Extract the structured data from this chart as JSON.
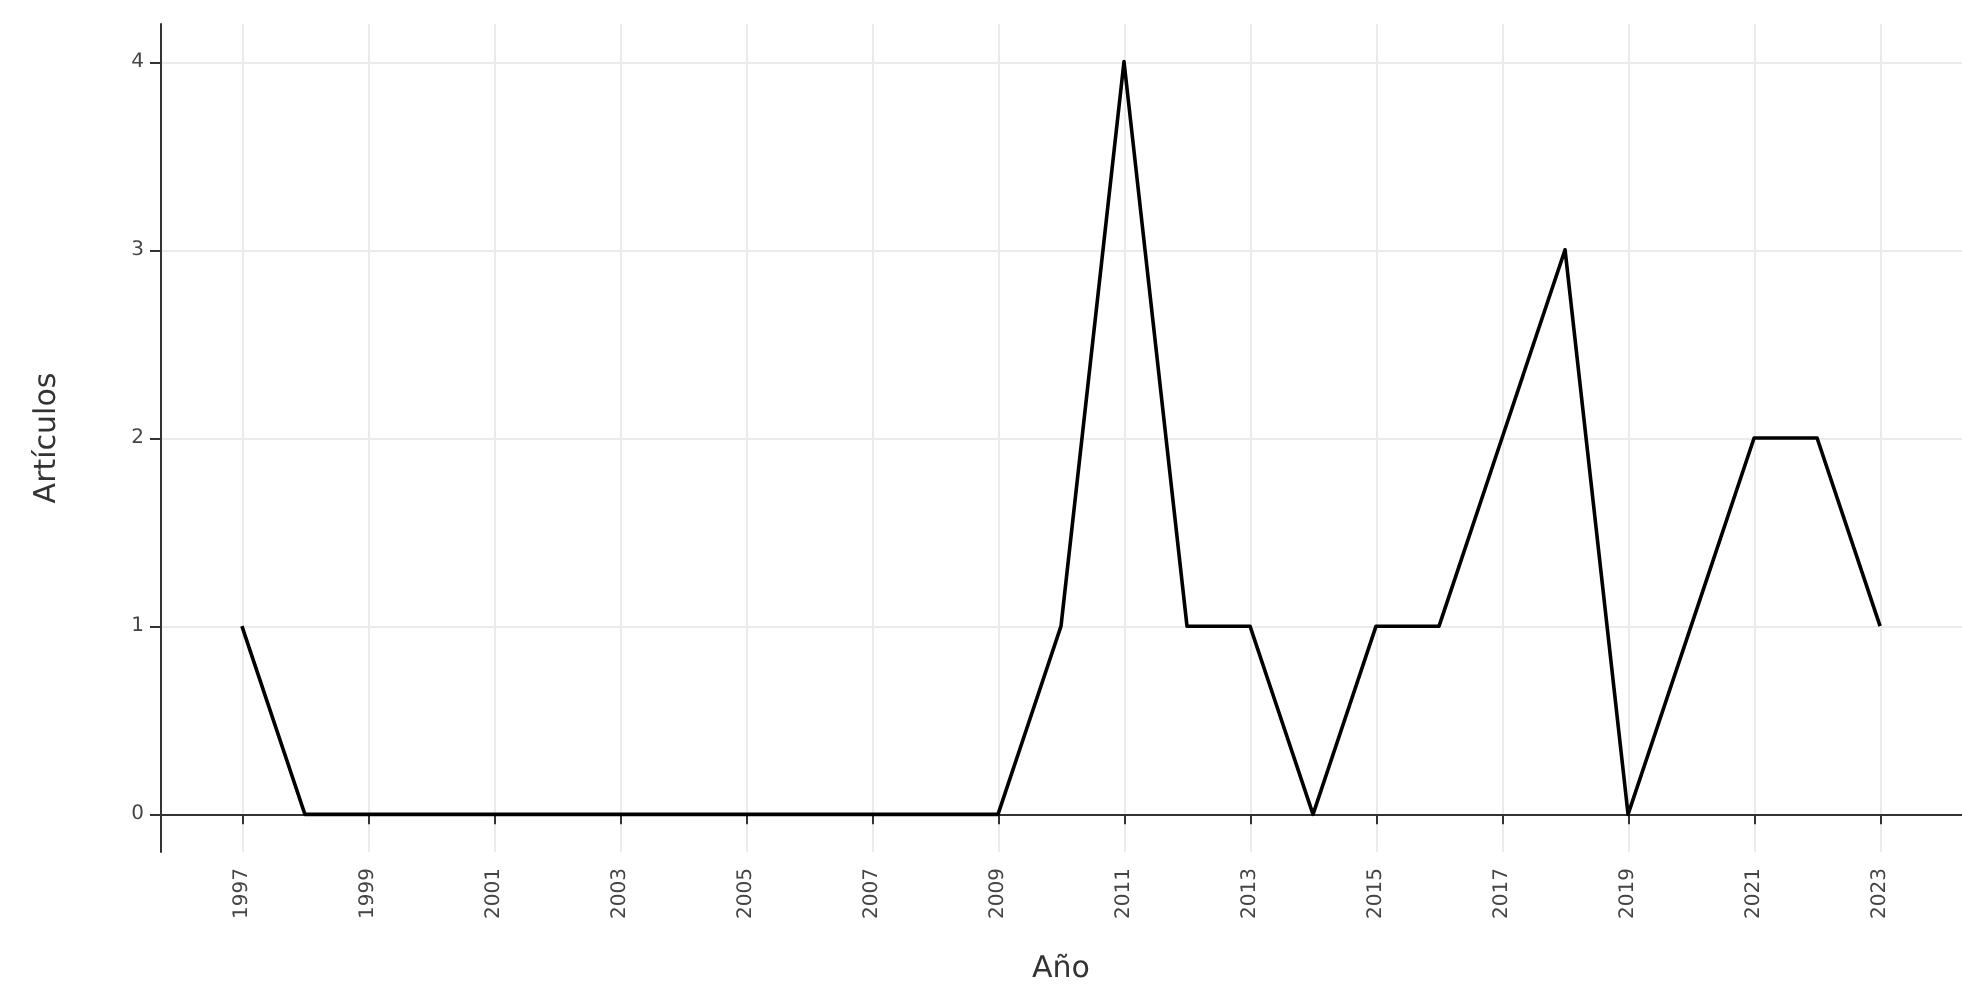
{
  "chart_data": {
    "type": "line",
    "xlabel": "Año",
    "ylabel": "Artículos",
    "x": [
      1997,
      1998,
      1999,
      2000,
      2001,
      2002,
      2003,
      2004,
      2005,
      2006,
      2007,
      2008,
      2009,
      2010,
      2011,
      2012,
      2013,
      2014,
      2015,
      2016,
      2017,
      2018,
      2019,
      2020,
      2021,
      2022,
      2023
    ],
    "series": [
      {
        "color": "#000000",
        "values": [
          1,
          0,
          0,
          0,
          0,
          0,
          0,
          0,
          0,
          0,
          0,
          0,
          0,
          1,
          4,
          1,
          1,
          0,
          1,
          1,
          2,
          3,
          0,
          1,
          2,
          2,
          1
        ]
      }
    ],
    "xlim": [
      1995.7,
      2024.3
    ],
    "xticks": [
      1997,
      1999,
      2001,
      2003,
      2005,
      2007,
      2009,
      2011,
      2013,
      2015,
      2017,
      2019,
      2021,
      2023
    ],
    "ylim": [
      -0.2,
      4.2
    ],
    "yticks": [
      0,
      1,
      2,
      3,
      4
    ],
    "grid": true,
    "marker": "none",
    "line_style": "solid"
  }
}
